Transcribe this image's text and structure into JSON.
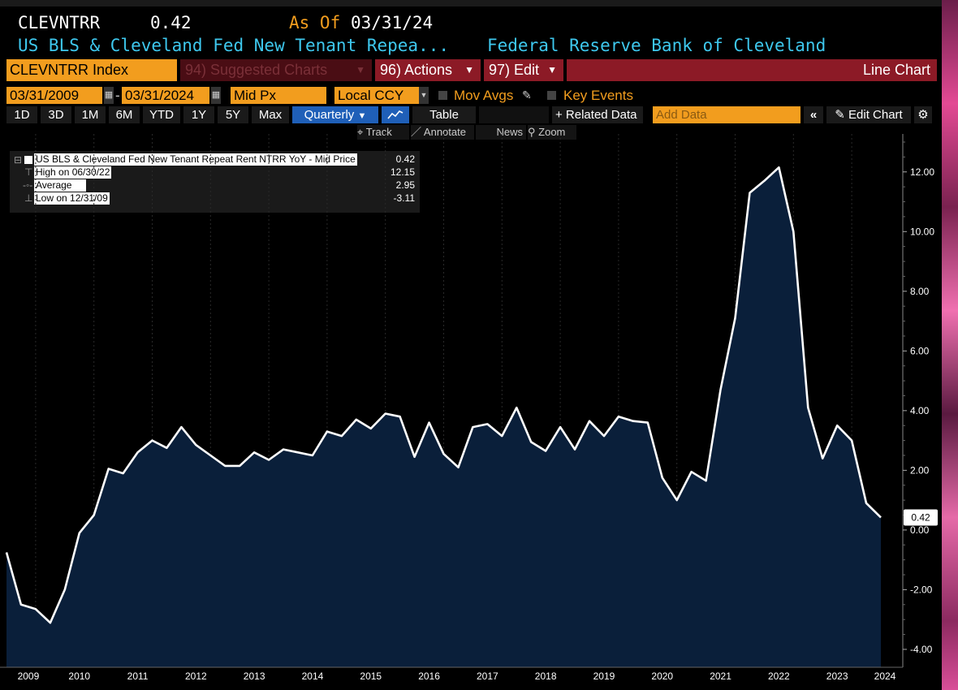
{
  "header": {
    "ticker": "CLEVNTRR",
    "last_value": "0.42",
    "as_of_label": "As Of",
    "as_of_date": "03/31/24",
    "security_name": "US BLS & Cleveland Fed New Tenant Repea...",
    "source": "Federal Reserve Bank of Cleveland"
  },
  "toolbar": {
    "security_field": "CLEVNTRR Index",
    "suggested_charts": "94) Suggested Charts",
    "actions": "96) Actions",
    "edit": "97) Edit",
    "chart_type": "Line Chart"
  },
  "settings": {
    "start_date": "03/31/2009",
    "end_date": "03/31/2024",
    "price_field": "Mid Px",
    "currency": "Local CCY",
    "mov_avgs": "Mov Avgs",
    "key_events": "Key Events"
  },
  "periods": [
    "1D",
    "3D",
    "1M",
    "6M",
    "YTD",
    "1Y",
    "5Y",
    "Max"
  ],
  "frequency": "Quarterly",
  "table_label": "Table",
  "related_data": "+ Related Data",
  "add_data_placeholder": "Add Data",
  "edit_chart": "Edit Chart",
  "tools": {
    "track": "Track",
    "annotate": "Annotate",
    "news": "News",
    "zoom": "Zoom"
  },
  "legend": {
    "series_name": "US BLS & Cleveland Fed New Tenant Repeat Rent NTRR YoY - Mid Price",
    "series_value": "0.42",
    "high_label": "High on 06/30/22",
    "high_value": "12.15",
    "avg_label": "Average",
    "avg_value": "2.95",
    "low_label": "Low on 12/31/09",
    "low_value": "-3.11"
  },
  "colors": {
    "background": "#000000",
    "area_fill": "#0a1f3a",
    "line": "#ffffff",
    "accent_orange": "#f29d1e",
    "accent_cyan": "#3ec8ee",
    "bar_red": "#8c1a26",
    "selected_blue": "#1f5fb8"
  },
  "chart_data": {
    "type": "area",
    "title": "",
    "frequency": "quarterly",
    "x_start": "2009-03-31",
    "x_end": "2024-03-31",
    "x_tick_labels": [
      "2009",
      "2010",
      "2011",
      "2012",
      "2013",
      "2014",
      "2015",
      "2016",
      "2017",
      "2018",
      "2019",
      "2020",
      "2021",
      "2022",
      "2023",
      "2024"
    ],
    "ylim": [
      -4.6,
      13.0
    ],
    "y_ticks": [
      -4.0,
      -2.0,
      0.0,
      2.0,
      4.0,
      6.0,
      8.0,
      10.0,
      12.0
    ],
    "grid": "none",
    "last_label": "0.42",
    "series": [
      {
        "name": "US BLS & Cleveland Fed New Tenant Repeat Rent NTRR YoY - Mid Price",
        "values": [
          -0.75,
          -2.5,
          -2.65,
          -3.11,
          -2.0,
          -0.1,
          0.5,
          2.05,
          1.9,
          2.6,
          3.0,
          2.75,
          3.45,
          2.85,
          2.5,
          2.15,
          2.15,
          2.6,
          2.35,
          2.7,
          2.6,
          2.5,
          3.3,
          3.15,
          3.7,
          3.4,
          3.9,
          3.8,
          2.45,
          3.6,
          2.55,
          2.1,
          3.45,
          3.55,
          3.15,
          4.1,
          2.95,
          2.65,
          3.45,
          2.7,
          3.65,
          3.15,
          3.8,
          3.65,
          3.6,
          1.75,
          1.0,
          1.95,
          1.65,
          4.7,
          7.1,
          11.3,
          11.7,
          12.15,
          10.0,
          4.1,
          2.4,
          3.5,
          3.0,
          0.9,
          0.42
        ]
      }
    ]
  }
}
